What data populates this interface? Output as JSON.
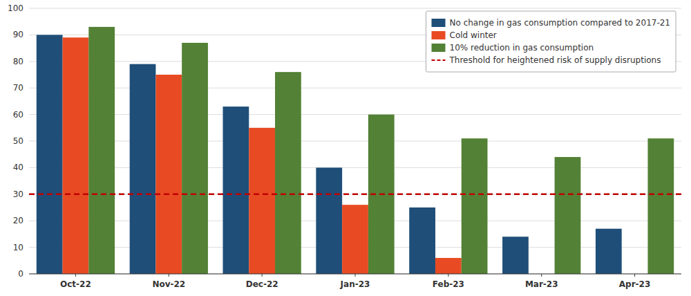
{
  "chart_data": {
    "type": "bar",
    "categories": [
      "Oct-22",
      "Nov-22",
      "Dec-22",
      "Jan-23",
      "Feb-23",
      "Mar-23",
      "Apr-23"
    ],
    "series": [
      {
        "name": "No change in gas consumption compared to 2017-21",
        "color": "#1F4E79",
        "values": [
          90,
          79,
          63,
          40,
          25,
          14,
          17
        ]
      },
      {
        "name": "Cold winter",
        "color": "#E84B23",
        "values": [
          89,
          75,
          55,
          26,
          6,
          null,
          null
        ]
      },
      {
        "name": "10% reduction in gas consumption",
        "color": "#538135",
        "values": [
          93,
          87,
          76,
          60,
          51,
          44,
          51
        ]
      }
    ],
    "threshold": {
      "name": "Threshold for heightened risk of supply disruptions",
      "value": 30,
      "color": "#C00000",
      "line_style": "dashed"
    },
    "ylim": [
      0,
      100
    ],
    "yticks": [
      0,
      10,
      20,
      30,
      40,
      50,
      60,
      70,
      80,
      90,
      100
    ],
    "grid": true,
    "legend": "upper right"
  }
}
